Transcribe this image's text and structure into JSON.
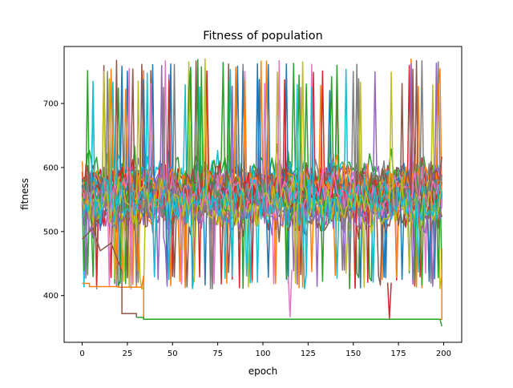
{
  "chart_data": {
    "type": "line",
    "title": "Fitness of population",
    "xlabel": "epoch",
    "ylabel": "fitness",
    "xlim": [
      -10,
      210
    ],
    "ylim": [
      327,
      789
    ],
    "xticks": [
      0,
      25,
      50,
      75,
      100,
      125,
      150,
      175,
      200
    ],
    "yticks": [
      400,
      500,
      600,
      700
    ],
    "grid": false,
    "legend": "none",
    "series_note_count": 30,
    "palette": [
      "#1f77b4",
      "#ff7f0e",
      "#2ca02c",
      "#d62728",
      "#9467bd",
      "#8c564b",
      "#e377c2",
      "#7f7f7f",
      "#bcbd22",
      "#17becf"
    ],
    "series": [
      {
        "color": "#ff7f0e",
        "points": [
          [
            0,
            419
          ],
          [
            4,
            419
          ],
          [
            4,
            414
          ],
          [
            20,
            414
          ],
          [
            20,
            413
          ],
          [
            33,
            413
          ],
          [
            34,
            431
          ],
          [
            34,
            363
          ],
          [
            199,
            363
          ],
          [
            199,
            474
          ]
        ]
      },
      {
        "color": "#8c564b",
        "points": [
          [
            0,
            488
          ],
          [
            6,
            505
          ],
          [
            10,
            470
          ],
          [
            16,
            482
          ],
          [
            22,
            438
          ],
          [
            22,
            372
          ],
          [
            30,
            372
          ],
          [
            30,
            366
          ]
        ]
      },
      {
        "color": "#2ca02c",
        "points": [
          [
            30,
            366
          ],
          [
            34,
            366
          ],
          [
            34,
            363
          ],
          [
            198,
            363
          ],
          [
            199,
            352
          ]
        ]
      },
      {
        "color": "#d62728",
        "points": [
          [
            169,
            420
          ],
          [
            170,
            364
          ],
          [
            171,
            420
          ]
        ]
      },
      {
        "color": "#e377c2",
        "points": [
          [
            114,
            430
          ],
          [
            115,
            366
          ],
          [
            116,
            440
          ]
        ]
      }
    ]
  }
}
